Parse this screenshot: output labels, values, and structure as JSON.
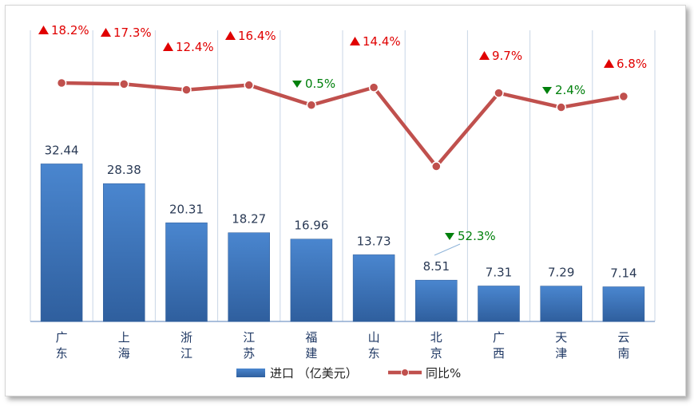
{
  "chart_data": {
    "type": "bar+line",
    "categories": [
      "广东",
      "上海",
      "浙江",
      "江苏",
      "福建",
      "山东",
      "北京",
      "广西",
      "天津",
      "云南"
    ],
    "series": [
      {
        "name": "进口（亿美元）",
        "type": "bar",
        "values": [
          32.44,
          28.38,
          20.31,
          18.27,
          16.96,
          13.73,
          8.51,
          7.31,
          7.29,
          7.14
        ],
        "labels": [
          "32.44",
          "28.38",
          "20.31",
          "18.27",
          "16.96",
          "13.73",
          "8.51",
          "7.31",
          "7.29",
          "7.14"
        ]
      },
      {
        "name": "同比%",
        "type": "line",
        "values": [
          18.2,
          17.3,
          12.4,
          16.4,
          -0.5,
          14.4,
          -52.3,
          9.7,
          -2.4,
          6.8
        ],
        "labels": [
          "18.2%",
          "17.3%",
          "12.4%",
          "16.4%",
          "0.5%",
          "14.4%",
          "52.3%",
          "9.7%",
          "2.4%",
          "6.8%"
        ]
      }
    ],
    "legend": {
      "position": "bottom",
      "bar_label": "进口 （亿美元）",
      "line_label": "同比%"
    },
    "grid": {
      "vertical": true
    },
    "colors": {
      "bar": "#3a73c0",
      "line": "#c0504d",
      "up": "#e00000",
      "down": "#00800c"
    }
  }
}
